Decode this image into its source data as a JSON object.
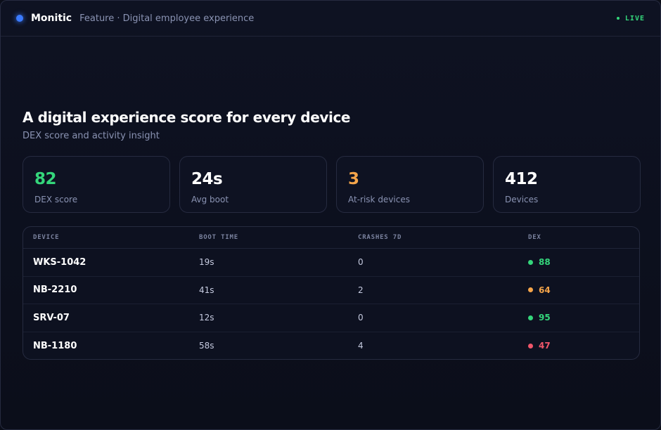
{
  "header": {
    "brand": "Monitic",
    "subtitle": "Feature · Digital employee experience",
    "status": "LIVE"
  },
  "hero": {
    "title": "A digital experience score for every device",
    "subtitle": "DEX score and activity insight"
  },
  "stats": [
    {
      "value": "82",
      "label": "DEX score",
      "color": "#34d67b"
    },
    {
      "value": "24s",
      "label": "Avg boot",
      "color": "#ffffff"
    },
    {
      "value": "3",
      "label": "At-risk devices",
      "color": "#f5a54a"
    },
    {
      "value": "412",
      "label": "Devices",
      "color": "#ffffff"
    }
  ],
  "table": {
    "columns": [
      "DEVICE",
      "BOOT TIME",
      "CRASHES 7D",
      "DEX"
    ],
    "rows": [
      {
        "device": "WKS-1042",
        "boot": "19s",
        "crashes": "0",
        "dex": "88",
        "status_color": "#34d67b"
      },
      {
        "device": "NB-2210",
        "boot": "41s",
        "crashes": "2",
        "dex": "64",
        "status_color": "#f5a54a"
      },
      {
        "device": "SRV-07",
        "boot": "12s",
        "crashes": "0",
        "dex": "95",
        "status_color": "#34d67b"
      },
      {
        "device": "NB-1180",
        "boot": "58s",
        "crashes": "4",
        "dex": "47",
        "status_color": "#f0566a"
      }
    ]
  },
  "colors": {
    "accent": "#3b7bff",
    "good": "#34d67b",
    "warn": "#f5a54a",
    "bad": "#f0566a"
  }
}
